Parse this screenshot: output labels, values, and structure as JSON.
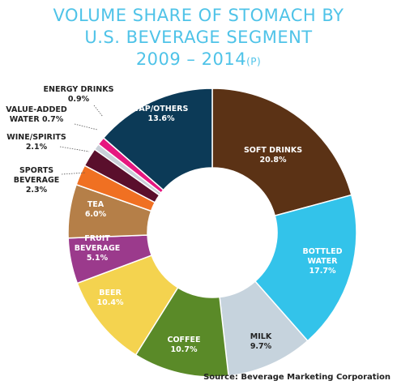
{
  "chart_data": {
    "type": "pie",
    "style": "donut",
    "title": "VOLUME SHARE OF STOMACH BY U.S. BEVERAGE SEGMENT",
    "subtitle": "2009 – 2014",
    "subtitle_suffix": "(P)",
    "unit": "%",
    "slices": [
      {
        "label": "SOFT DRINKS",
        "value": 20.8,
        "value_label": "20.8%",
        "color": "#5b3215"
      },
      {
        "label": "BOTTLED WATER",
        "value": 17.7,
        "value_label": "17.7%",
        "color": "#33c3ea"
      },
      {
        "label": "MILK",
        "value": 9.7,
        "value_label": "9.7%",
        "color": "#c6d3dd"
      },
      {
        "label": "COFFEE",
        "value": 10.7,
        "value_label": "10.7%",
        "color": "#5a8a28"
      },
      {
        "label": "BEER",
        "value": 10.4,
        "value_label": "10.4%",
        "color": "#f4d34f"
      },
      {
        "label": "FRUIT BEVERAGE",
        "value": 5.1,
        "value_label": "5.1%",
        "color": "#9b3a8c"
      },
      {
        "label": "TEA",
        "value": 6.0,
        "value_label": "6.0%",
        "color": "#b57f48"
      },
      {
        "label": "SPORTS BEVERAGE",
        "value": 2.3,
        "value_label": "2.3%",
        "color": "#f07022"
      },
      {
        "label": "WINE/SPIRITS",
        "value": 2.1,
        "value_label": "2.1%",
        "color": "#5a0f2c"
      },
      {
        "label": "VALUE-ADDED WATER",
        "value": 0.7,
        "value_label": "0.7%",
        "color": "#c9d0d8"
      },
      {
        "label": "ENERGY DRINKS",
        "value": 0.9,
        "value_label": "0.9%",
        "color": "#e6177f"
      },
      {
        "label": "TAP/OTHERS",
        "value": 13.6,
        "value_label": "13.6%",
        "color": "#0c3a57"
      }
    ],
    "source": "Source: Beverage Marketing Corporation"
  }
}
